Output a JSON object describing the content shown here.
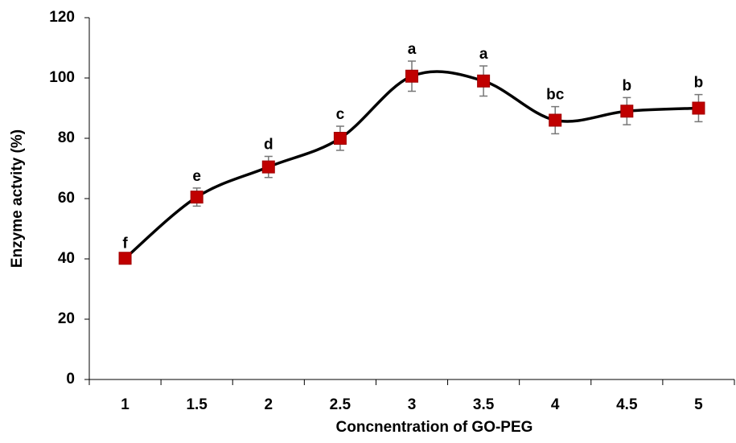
{
  "chart_data": {
    "type": "line",
    "x_label": "Concnentration of GO-PEG",
    "y_label": "Enzyme actvity (%)",
    "categories": [
      "1",
      "1.5",
      "2",
      "2.5",
      "3",
      "3.5",
      "4",
      "4.5",
      "5"
    ],
    "values": [
      40.2,
      60.5,
      70.5,
      80,
      100.6,
      99,
      86,
      89,
      90
    ],
    "errors": [
      1,
      3,
      3.5,
      4,
      5,
      5,
      4.5,
      4.5,
      4.5
    ],
    "annotations": [
      "f",
      "e",
      "d",
      "c",
      "a",
      "a",
      "bc",
      "b",
      "b"
    ],
    "marker_color": "#c00000",
    "line_color": "#000000",
    "ylim": [
      0,
      120
    ],
    "yticks": [
      0,
      20,
      40,
      60,
      80,
      100,
      120
    ]
  }
}
